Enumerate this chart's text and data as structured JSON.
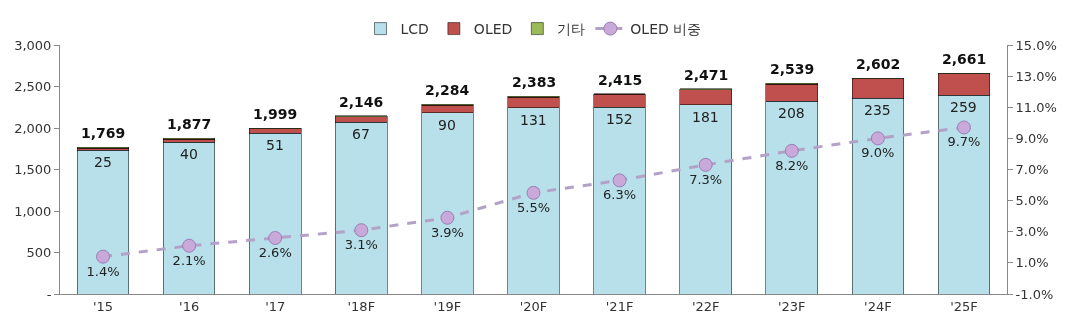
{
  "chart_data": {
    "type": "bar",
    "stacked": true,
    "categories": [
      "'15",
      "'16",
      "'17",
      "'18F",
      "'19F",
      "'20F",
      "'21F",
      "'22F",
      "'23F",
      "'24F",
      "'25F"
    ],
    "series": [
      {
        "name": "LCD",
        "color": "#b7e0ea",
        "values": [
          1734,
          1827,
          1938,
          2069,
          2184,
          2242,
          2253,
          2280,
          2321,
          2357,
          2392
        ]
      },
      {
        "name": "OLED",
        "color": "#c0504d",
        "values": [
          25,
          40,
          51,
          67,
          90,
          131,
          152,
          181,
          208,
          235,
          259
        ],
        "value_labels": [
          "25",
          "40",
          "51",
          "67",
          "90",
          "131",
          "152",
          "181",
          "208",
          "235",
          "259"
        ]
      },
      {
        "name": "기타",
        "color": "#9bbb59",
        "values": [
          10,
          10,
          10,
          10,
          10,
          10,
          10,
          10,
          10,
          10,
          10
        ]
      },
      {
        "name": "OLED 비중",
        "type": "line",
        "axis": "y2",
        "color": "#b3a2c7",
        "line_style": "dashed",
        "marker": "circle",
        "values": [
          1.4,
          2.1,
          2.6,
          3.1,
          3.9,
          5.5,
          6.3,
          7.3,
          8.2,
          9.0,
          9.7
        ],
        "value_labels": [
          "1.4%",
          "2.1%",
          "2.6%",
          "3.1%",
          "3.9%",
          "5.5%",
          "6.3%",
          "7.3%",
          "8.2%",
          "9.0%",
          "9.7%"
        ]
      }
    ],
    "totals": [
      "1,769",
      "1,877",
      "1,999",
      "2,146",
      "2,284",
      "2,383",
      "2,415",
      "2,471",
      "2,539",
      "2,602",
      "2,661"
    ],
    "ylim": [
      0,
      3000
    ],
    "yticks": [
      {
        "value": 0,
        "label": "-"
      },
      {
        "value": 500,
        "label": "500"
      },
      {
        "value": 1000,
        "label": "1,000"
      },
      {
        "value": 1500,
        "label": "1,500"
      },
      {
        "value": 2000,
        "label": "2,000"
      },
      {
        "value": 2500,
        "label": "2,500"
      },
      {
        "value": 3000,
        "label": "3,000"
      }
    ],
    "y2lim": [
      -1,
      15
    ],
    "y2ticks": [
      {
        "value": -1,
        "label": "-1.0%"
      },
      {
        "value": 1,
        "label": "1.0%"
      },
      {
        "value": 3,
        "label": "3.0%"
      },
      {
        "value": 5,
        "label": "5.0%"
      },
      {
        "value": 7,
        "label": "7.0%"
      },
      {
        "value": 9,
        "label": "9.0%"
      },
      {
        "value": 11,
        "label": "11.0%"
      },
      {
        "value": 13,
        "label": "13.0%"
      },
      {
        "value": 15,
        "label": "15.0%"
      }
    ],
    "legend": "top"
  }
}
